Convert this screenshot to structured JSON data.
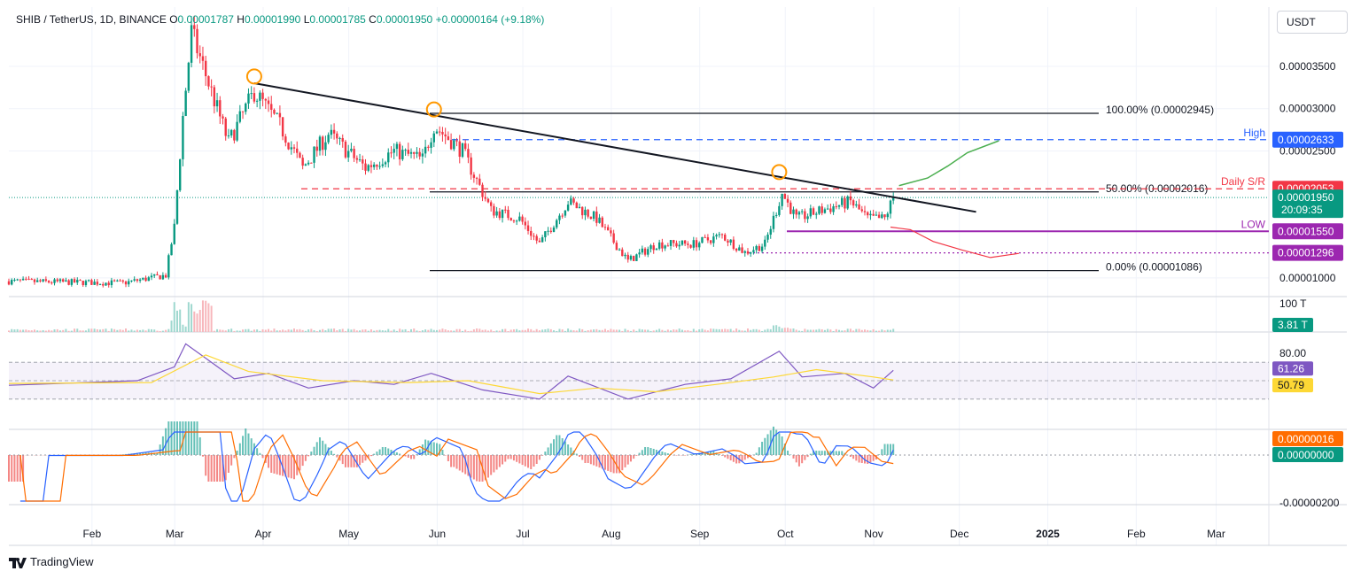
{
  "header": {
    "symbol": "SHIB / TetherUS, 1D, BINANCE",
    "open_label": "O",
    "open": "0.00001787",
    "high_label": "H",
    "high": "0.00001990",
    "low_label": "L",
    "low": "0.00001785",
    "close_label": "C",
    "close": "0.00001950",
    "change": "+0.00000164 (+9.18%)"
  },
  "currency_button": "USDT",
  "branding": "TradingView",
  "colors": {
    "up": "#089981",
    "down": "#f23645",
    "high_line": "#2962ff",
    "support_line": "#9c27b0",
    "rsi": "#7e57c2",
    "rsi_ma": "#fdd835",
    "macd": "#2962ff",
    "signal": "#ff6d00",
    "trendline": "#131722"
  },
  "chart_data": [
    {
      "type": "candlestick",
      "pane": "price",
      "ylim": [
        8e-06,
        4.2e-05
      ],
      "y_ticks": [
        "0.00003500",
        "0.00003000",
        "0.00002500",
        "0.00001000"
      ],
      "x_ticks": [
        "Feb",
        "Mar",
        "Apr",
        "May",
        "Jun",
        "Jul",
        "Aug",
        "Sep",
        "Oct",
        "Nov",
        "Dec",
        "2025",
        "Feb",
        "Mar"
      ],
      "close_path": [
        [
          "2024-01-01",
          9.6e-06
        ],
        [
          "2024-01-20",
          9.5e-06
        ],
        [
          "2024-02-10",
          9.4e-06
        ],
        [
          "2024-02-25",
          1.03e-05
        ],
        [
          "2024-02-28",
          1.6e-05
        ],
        [
          "2024-03-02",
          2.9e-05
        ],
        [
          "2024-03-05",
          3.9e-05
        ],
        [
          "2024-03-10",
          3.4e-05
        ],
        [
          "2024-03-18",
          2.6e-05
        ],
        [
          "2024-03-27",
          3.2e-05
        ],
        [
          "2024-04-05",
          2.8e-05
        ],
        [
          "2024-04-13",
          2.3e-05
        ],
        [
          "2024-04-22",
          2.7e-05
        ],
        [
          "2024-05-05",
          2.3e-05
        ],
        [
          "2024-05-15",
          2.5e-05
        ],
        [
          "2024-05-25",
          2.4e-05
        ],
        [
          "2024-05-29",
          2.8e-05
        ],
        [
          "2024-06-08",
          2.5e-05
        ],
        [
          "2024-06-18",
          1.8e-05
        ],
        [
          "2024-06-28",
          1.7e-05
        ],
        [
          "2024-07-05",
          1.4e-05
        ],
        [
          "2024-07-15",
          1.9e-05
        ],
        [
          "2024-07-25",
          1.7e-05
        ],
        [
          "2024-08-05",
          1.2e-05
        ],
        [
          "2024-08-15",
          1.4e-05
        ],
        [
          "2024-08-28",
          1.4e-05
        ],
        [
          "2024-09-07",
          1.5e-05
        ],
        [
          "2024-09-15",
          1.3e-05
        ],
        [
          "2024-09-22",
          1.4e-05
        ],
        [
          "2024-09-28",
          2e-05
        ],
        [
          "2024-10-03",
          1.7e-05
        ],
        [
          "2024-10-12",
          1.8e-05
        ],
        [
          "2024-10-22",
          1.9e-05
        ],
        [
          "2024-10-28",
          1.7e-05
        ],
        [
          "2024-11-03",
          1.7e-05
        ],
        [
          "2024-11-06",
          1.95e-05
        ]
      ],
      "levels": [
        {
          "label": "100.00% (0.00002945)",
          "value": 2.945e-05,
          "style": "solid",
          "color": "#131722"
        },
        {
          "label": "50.00% (0.00002016)",
          "value": 2.016e-05,
          "style": "solid",
          "color": "#131722"
        },
        {
          "label": "0.00% (0.00001086)",
          "value": 1.086e-05,
          "style": "solid",
          "color": "#131722"
        },
        {
          "label": "High",
          "value": 2.633e-05,
          "style": "dashed",
          "color": "#2962ff"
        },
        {
          "label": "Daily S/R",
          "value": 2.053e-05,
          "style": "dashed",
          "color": "#f23645"
        },
        {
          "label": "LOW",
          "value": 1.55e-05,
          "style": "solid",
          "color": "#9c27b0"
        },
        {
          "label": "",
          "value": 1.296e-05,
          "style": "dotted",
          "color": "#9c27b0"
        }
      ],
      "price_tags": [
        {
          "text": "0.00002633",
          "value": 2.633e-05,
          "color": "#2962ff"
        },
        {
          "text": "0.00002053",
          "value": 2.053e-05,
          "color": "#f23645"
        },
        {
          "text": "0.00001950",
          "sub": "20:09:35",
          "value": 1.95e-05,
          "color": "#089981"
        },
        {
          "text": "0.00001550",
          "value": 1.55e-05,
          "color": "#9c27b0"
        },
        {
          "text": "0.00001296",
          "value": 1.296e-05,
          "color": "#9c27b0"
        }
      ],
      "trendline": [
        [
          "2024-03-27",
          3.3e-05
        ],
        [
          "2024-12-05",
          1.78e-05
        ]
      ],
      "pivots": [
        [
          "2024-03-27",
          3.38e-05
        ],
        [
          "2024-05-29",
          2.99e-05
        ],
        [
          "2024-09-27",
          2.25e-05
        ]
      ],
      "projection_up": [
        [
          "2024-11-08",
          2.09e-05
        ],
        [
          "2024-11-18",
          2.18e-05
        ],
        [
          "2024-11-25",
          2.32e-05
        ],
        [
          "2024-12-02",
          2.48e-05
        ],
        [
          "2024-12-13",
          2.62e-05
        ]
      ],
      "projection_down": [
        [
          "2024-11-05",
          1.6e-05
        ],
        [
          "2024-11-12",
          1.57e-05
        ],
        [
          "2024-11-20",
          1.43e-05
        ],
        [
          "2024-11-30",
          1.33e-05
        ],
        [
          "2024-12-10",
          1.24e-05
        ],
        [
          "2024-12-20",
          1.29e-05
        ]
      ]
    },
    {
      "type": "bar",
      "pane": "volume",
      "y_ticks": [
        "100 T"
      ],
      "last_value": "3.81 T"
    },
    {
      "type": "line",
      "pane": "rsi",
      "ylim": [
        0,
        100
      ],
      "y_ticks": [
        "80.00"
      ],
      "bands": [
        70,
        50,
        30
      ],
      "series": [
        {
          "name": "RSI",
          "last": "61.26",
          "path": [
            [
              "2024-01-01",
              45
            ],
            [
              "2024-02-15",
              50
            ],
            [
              "2024-02-28",
              65
            ],
            [
              "2024-03-03",
              90
            ],
            [
              "2024-03-12",
              70
            ],
            [
              "2024-03-20",
              52
            ],
            [
              "2024-04-01",
              58
            ],
            [
              "2024-04-15",
              42
            ],
            [
              "2024-05-01",
              50
            ],
            [
              "2024-05-15",
              46
            ],
            [
              "2024-05-28",
              58
            ],
            [
              "2024-06-15",
              40
            ],
            [
              "2024-07-05",
              30
            ],
            [
              "2024-07-15",
              55
            ],
            [
              "2024-08-05",
              30
            ],
            [
              "2024-08-25",
              46
            ],
            [
              "2024-09-10",
              52
            ],
            [
              "2024-09-27",
              82
            ],
            [
              "2024-10-05",
              54
            ],
            [
              "2024-10-20",
              58
            ],
            [
              "2024-10-30",
              42
            ],
            [
              "2024-11-06",
              61.26
            ]
          ]
        },
        {
          "name": "RSI MA",
          "last": "50.79",
          "path": [
            [
              "2024-01-01",
              47
            ],
            [
              "2024-02-20",
              48
            ],
            [
              "2024-03-10",
              78
            ],
            [
              "2024-03-25",
              60
            ],
            [
              "2024-04-20",
              50
            ],
            [
              "2024-05-20",
              48
            ],
            [
              "2024-06-10",
              50
            ],
            [
              "2024-07-05",
              36
            ],
            [
              "2024-07-25",
              42
            ],
            [
              "2024-08-15",
              38
            ],
            [
              "2024-09-05",
              46
            ],
            [
              "2024-09-25",
              54
            ],
            [
              "2024-10-10",
              62
            ],
            [
              "2024-10-30",
              54
            ],
            [
              "2024-11-06",
              50.79
            ]
          ]
        }
      ]
    },
    {
      "type": "histogram",
      "pane": "macd",
      "y_ticks": [
        "-0.00000200"
      ],
      "series": [
        {
          "name": "MACD",
          "last": "0.00000016"
        },
        {
          "name": "Signal",
          "last": "0.00000000"
        }
      ]
    }
  ]
}
